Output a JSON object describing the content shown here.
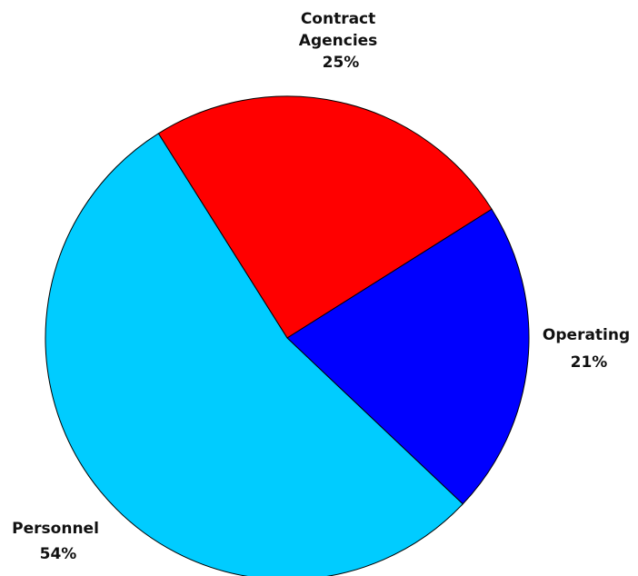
{
  "chart_data": {
    "type": "pie",
    "title": "",
    "slices": [
      {
        "name": "Contract Agencies",
        "value": 25,
        "percent_label": "25%",
        "color": "#FF0000"
      },
      {
        "name": "Operating",
        "value": 21,
        "percent_label": "21%",
        "color": "#0000FF"
      },
      {
        "name": "Personnel",
        "value": 54,
        "percent_label": "54%",
        "color": "#00CCFF"
      }
    ],
    "legend": "none",
    "edge_color": "#000000"
  }
}
